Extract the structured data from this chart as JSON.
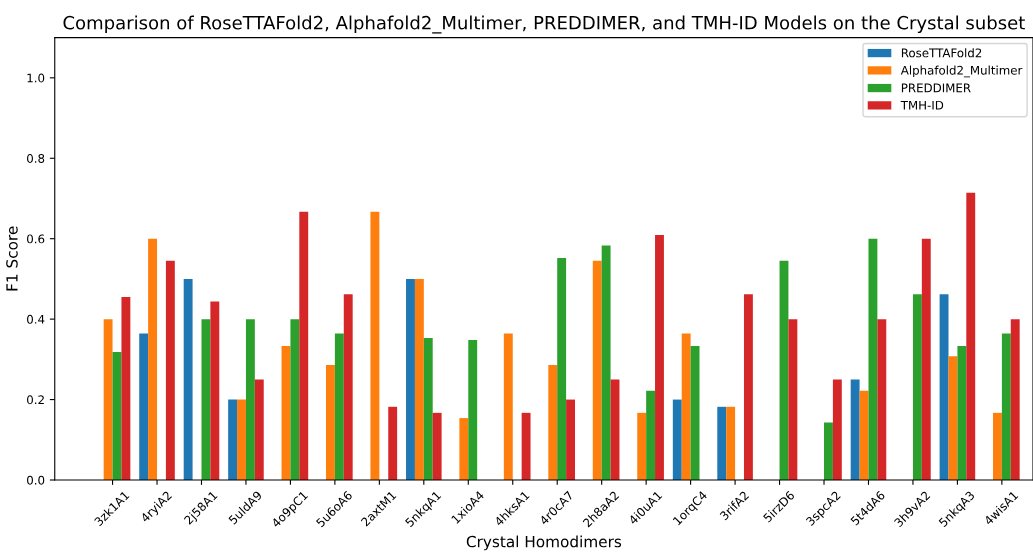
{
  "chart_data": {
    "type": "bar",
    "title": "Comparison of RoseTTAFold2, Alphafold2_Multimer, PREDDIMER, and TMH-ID Models on the Crystal subset",
    "xlabel": "Crystal Homodimers",
    "ylabel": "F1 Score",
    "categories": [
      "3zk1A1",
      "4ryiA2",
      "2j58A1",
      "5uldA9",
      "4o9pC1",
      "5u6oA6",
      "2axtM1",
      "5nkqA1",
      "1xioA4",
      "4hksA1",
      "4r0cA7",
      "2h8aA2",
      "4i0uA1",
      "1orqC4",
      "3rifA2",
      "5irzD6",
      "3spcA2",
      "5t4dA6",
      "3h9vA2",
      "5nkqA3",
      "4wisA1"
    ],
    "series": [
      {
        "name": "RoseTTAFold2",
        "color": "#1f77b4",
        "values": [
          0,
          0.364,
          0.5,
          0.2,
          0,
          0,
          0,
          0.5,
          0,
          0,
          0,
          0,
          0,
          0.2,
          0.182,
          0,
          0,
          0.25,
          0,
          0.462,
          0
        ]
      },
      {
        "name": "Alphafold2_Multimer",
        "color": "#ff7f0e",
        "values": [
          0.4,
          0.6,
          0,
          0.2,
          0.333,
          0.286,
          0.667,
          0.5,
          0.154,
          0.364,
          0.286,
          0.545,
          0.167,
          0.364,
          0.182,
          0,
          0,
          0.222,
          0,
          0.308,
          0.167
        ]
      },
      {
        "name": "PREDDIMER",
        "color": "#2ca02c",
        "values": [
          0.318,
          0,
          0.4,
          0.4,
          0.4,
          0.364,
          0,
          0.353,
          0.348,
          0,
          0.552,
          0.583,
          0.222,
          0.333,
          0,
          0.545,
          0.143,
          0.6,
          0.462,
          0.333,
          0.364
        ]
      },
      {
        "name": "TMH-ID",
        "color": "#d62728",
        "values": [
          0.455,
          0.545,
          0.444,
          0.25,
          0.667,
          0.462,
          0.182,
          0.167,
          0,
          0.167,
          0.2,
          0.25,
          0.609,
          0,
          0.462,
          0.4,
          0.25,
          0.4,
          0.6,
          0.714,
          0.4
        ]
      }
    ],
    "ylim": [
      0,
      1.1
    ],
    "yticks": [
      {
        "value": 0,
        "label": "0.0"
      },
      {
        "value": 0.2,
        "label": "0.2"
      },
      {
        "value": 0.4,
        "label": "0.4"
      },
      {
        "value": 0.6,
        "label": "0.6"
      },
      {
        "value": 0.8,
        "label": "0.8"
      },
      {
        "value": 1.0,
        "label": "1.0"
      }
    ],
    "grid": false,
    "legend": "top right"
  }
}
